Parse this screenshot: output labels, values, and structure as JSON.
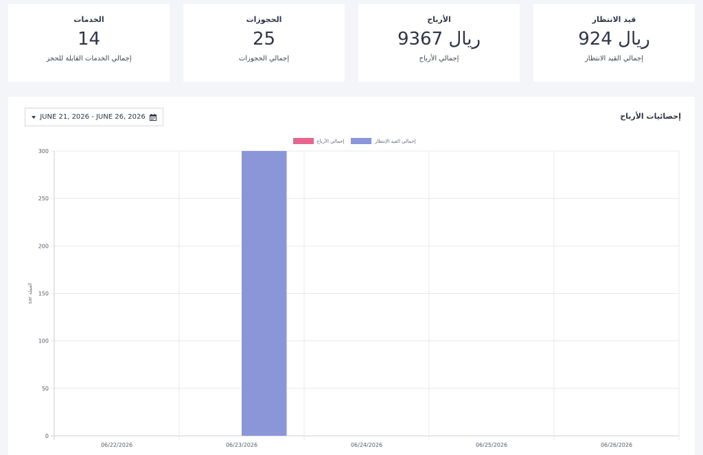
{
  "cards": [
    {
      "title": "الخدمات",
      "value": "14",
      "subtitle": "إجمالي الخدمات القابلة للحجز"
    },
    {
      "title": "الحجوزات",
      "value": "25",
      "subtitle": "إجمالي الحجوزات"
    },
    {
      "title": "الأرباح",
      "value": "9367 ريال",
      "subtitle": "إجمالي الأرباح"
    },
    {
      "title": "قيد الانتظار",
      "value": "924 ريال",
      "subtitle": "إجمالي القيد الانتظار"
    }
  ],
  "panel": {
    "title": "إحصائيات الأرباح",
    "date_range": "JUNE 21, 2026 - JUNE 26, 2026"
  },
  "colors": {
    "earnings": "#e8648f",
    "pending": "#8a96d8"
  },
  "chart_data": {
    "type": "bar",
    "categories": [
      "06/22/2026",
      "06/23/2026",
      "06/24/2026",
      "06/25/2026",
      "06/26/2026"
    ],
    "series": [
      {
        "name": "إجمالي الأرباح",
        "values": [
          0,
          0,
          0,
          0,
          0
        ]
      },
      {
        "name": "إجمالي القيد الإنتظار",
        "values": [
          0,
          300,
          0,
          0,
          0
        ]
      }
    ],
    "ylabel": "sar العملة",
    "yticks": [
      0,
      50,
      100,
      150,
      200,
      250,
      300
    ],
    "ylim": [
      0,
      300
    ],
    "legend": "top-center",
    "grid": true
  }
}
